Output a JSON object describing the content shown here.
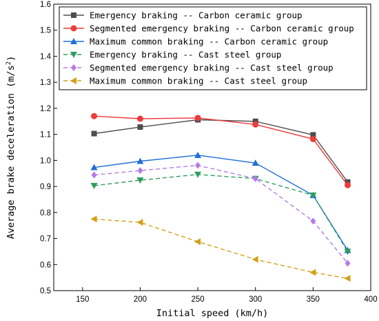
{
  "chart_data": {
    "type": "line",
    "title": "",
    "xlabel": "Initial speed (km/h)",
    "ylabel_main": "Average brake deceleration (m/s",
    "ylabel_sup": "2",
    "ylabel_tail": ")",
    "xlim": [
      125,
      400
    ],
    "ylim": [
      0.5,
      1.6
    ],
    "xticks": [
      150,
      200,
      250,
      300,
      350,
      400
    ],
    "yticks": [
      0.5,
      0.6,
      0.7,
      0.8,
      0.9,
      1.0,
      1.1,
      1.2,
      1.3,
      1.4,
      1.5,
      1.6
    ],
    "x": [
      160,
      200,
      250,
      300,
      350,
      380
    ],
    "grid": false,
    "legend_position": "top-left",
    "series": [
      {
        "name": "Emergency braking -- Carbon ceramic group",
        "color": "#4d4d4d",
        "marker": "square",
        "dash": "solid",
        "values": [
          1.103,
          1.128,
          1.156,
          1.15,
          1.098,
          0.917
        ]
      },
      {
        "name": "Segmented emergency braking -- Carbon ceramic group",
        "color": "#ee3b3b",
        "marker": "circle",
        "dash": "solid",
        "values": [
          1.17,
          1.16,
          1.163,
          1.138,
          1.082,
          0.905
        ]
      },
      {
        "name": "Maximum common braking -- Carbon ceramic group",
        "color": "#1f6fd6",
        "marker": "triangle-up",
        "dash": "solid",
        "values": [
          0.973,
          0.997,
          1.02,
          0.99,
          0.866,
          0.655
        ]
      },
      {
        "name": "Emergency braking -- Cast steel group",
        "color": "#2e9e5e",
        "marker": "triangle-down",
        "dash": "dashed",
        "values": [
          0.903,
          0.924,
          0.946,
          0.93,
          0.866,
          0.65
        ]
      },
      {
        "name": "Segmented emergency braking -- Cast steel group",
        "color": "#b57ae8",
        "marker": "diamond",
        "dash": "dashed",
        "values": [
          0.944,
          0.961,
          0.981,
          0.93,
          0.767,
          0.605
        ]
      },
      {
        "name": "Maximum common braking -- Cast steel group",
        "color": "#d4a017",
        "marker": "triangle-left",
        "dash": "dashed",
        "values": [
          0.775,
          0.762,
          0.688,
          0.62,
          0.57,
          0.547
        ]
      }
    ]
  }
}
